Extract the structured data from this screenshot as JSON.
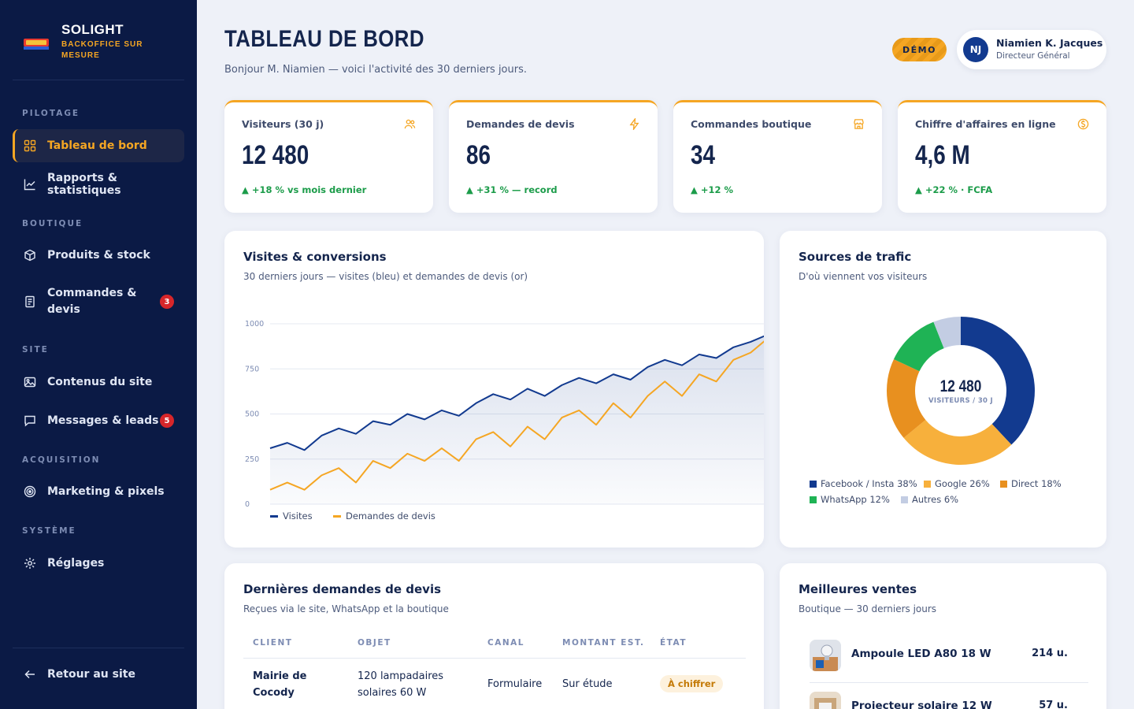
{
  "brand": {
    "name": "SOLIGHT",
    "subtitle": "BACKOFFICE SUR MESURE"
  },
  "sidebar": {
    "sections": [
      {
        "label": "PILOTAGE"
      },
      {
        "label": "BOUTIQUE"
      },
      {
        "label": "SITE"
      },
      {
        "label": "ACQUISITION"
      },
      {
        "label": "SYSTÈME"
      }
    ],
    "items": [
      {
        "label": "Tableau de bord",
        "icon": "dashboard-icon",
        "active": true
      },
      {
        "label": "Rapports & statistiques",
        "icon": "chart-line-icon"
      },
      {
        "label": "Produits & stock",
        "icon": "box-icon"
      },
      {
        "label": "Commandes & devis",
        "icon": "receipt-icon",
        "badge": "3"
      },
      {
        "label": "Contenus du site",
        "icon": "image-icon"
      },
      {
        "label": "Messages & leads",
        "icon": "message-icon",
        "badge": "5"
      },
      {
        "label": "Marketing & pixels",
        "icon": "target-icon"
      },
      {
        "label": "Réglages",
        "icon": "gear-icon"
      }
    ],
    "back": {
      "label": "Retour au site",
      "icon": "arrow-left-icon"
    }
  },
  "header": {
    "title": "TABLEAU DE BORD",
    "subtitle": "Bonjour M. Niamien — voici l'activité des 30 derniers jours.",
    "demo": "DÉMO",
    "user": {
      "initials": "NJ",
      "name": "Niamien K. Jacques",
      "role": "Directeur Général"
    }
  },
  "kpis": [
    {
      "label": "Visiteurs (30 j)",
      "value": "12 480",
      "delta": "▲ +18 % vs mois dernier",
      "icon": "users-icon"
    },
    {
      "label": "Demandes de devis",
      "value": "86",
      "delta": "▲ +31 % — record",
      "icon": "bolt-icon"
    },
    {
      "label": "Commandes boutique",
      "value": "34",
      "delta": "▲ +12 %",
      "icon": "store-icon"
    },
    {
      "label": "Chiffre d'affaires en ligne",
      "value": "4,6 M",
      "delta": "▲ +22 % · FCFA",
      "icon": "coin-icon"
    }
  ],
  "colors": {
    "accent": "#f5a623",
    "navy": "#0b1a45",
    "blue": "#123a8f",
    "green": "#1c9c4a"
  },
  "visits_panel": {
    "title": "Visites & conversions",
    "subtitle": "30 derniers jours — visites (bleu) et demandes de devis (or)"
  },
  "chart_data": [
    {
      "type": "line",
      "title": "Visites & conversions",
      "ylim": [
        0,
        1000
      ],
      "yticks": [
        "1000",
        "750",
        "500",
        "250",
        "0"
      ],
      "grid": true,
      "legend_position": "bottom-left",
      "x": [
        1,
        2,
        3,
        4,
        5,
        6,
        7,
        8,
        9,
        10,
        11,
        12,
        13,
        14,
        15,
        16,
        17,
        18,
        19,
        20,
        21,
        22,
        23,
        24,
        25,
        26,
        27,
        28,
        29,
        30
      ],
      "series": [
        {
          "name": "Visites",
          "color": "#123a8f",
          "values": [
            310,
            340,
            300,
            380,
            420,
            390,
            460,
            440,
            500,
            470,
            520,
            490,
            560,
            610,
            580,
            640,
            600,
            660,
            700,
            670,
            720,
            690,
            760,
            800,
            770,
            830,
            810,
            870,
            900,
            940
          ]
        },
        {
          "name": "Demandes de devis",
          "color": "#f5a623",
          "values": [
            80,
            120,
            80,
            160,
            200,
            120,
            240,
            200,
            280,
            240,
            310,
            240,
            360,
            400,
            320,
            430,
            360,
            480,
            520,
            440,
            560,
            480,
            600,
            680,
            600,
            720,
            680,
            800,
            840,
            920
          ]
        }
      ]
    },
    {
      "type": "pie",
      "title": "Sources de trafic",
      "center_value": "12 480",
      "center_label": "VISITEURS / 30 J",
      "legend_position": "bottom",
      "slices": [
        {
          "name": "Facebook / Insta",
          "label": "Facebook / Insta 38%",
          "value": 38,
          "color": "#123a8f"
        },
        {
          "name": "Google",
          "label": "Google 26%",
          "value": 26,
          "color": "#f7b03c"
        },
        {
          "name": "Direct",
          "label": "Direct 18%",
          "value": 18,
          "color": "#e8901f"
        },
        {
          "name": "WhatsApp",
          "label": "WhatsApp 12%",
          "value": 12,
          "color": "#1fb355"
        },
        {
          "name": "Autres",
          "label": "Autres 6%",
          "value": 6,
          "color": "#c3cde3"
        }
      ]
    }
  ],
  "traffic_panel": {
    "title": "Sources de trafic",
    "subtitle": "D'où viennent vos visiteurs"
  },
  "quotes_panel": {
    "title": "Dernières demandes de devis",
    "subtitle": "Reçues via le site, WhatsApp et la boutique",
    "columns": [
      "CLIENT",
      "OBJET",
      "CANAL",
      "MONTANT EST.",
      "ÉTAT"
    ],
    "rows": [
      {
        "client": "Mairie de Cocody",
        "object": "120 lampadaires solaires 60 W",
        "channel": "Formulaire",
        "amount": "Sur étude",
        "status": "À chiffrer"
      }
    ]
  },
  "best_sellers": {
    "title": "Meilleures ventes",
    "subtitle": "Boutique — 30 derniers jours",
    "items": [
      {
        "name": "Ampoule LED A80 18 W",
        "qty": "214 u."
      },
      {
        "name": "Projecteur solaire 12 W",
        "qty": "57 u."
      }
    ]
  }
}
